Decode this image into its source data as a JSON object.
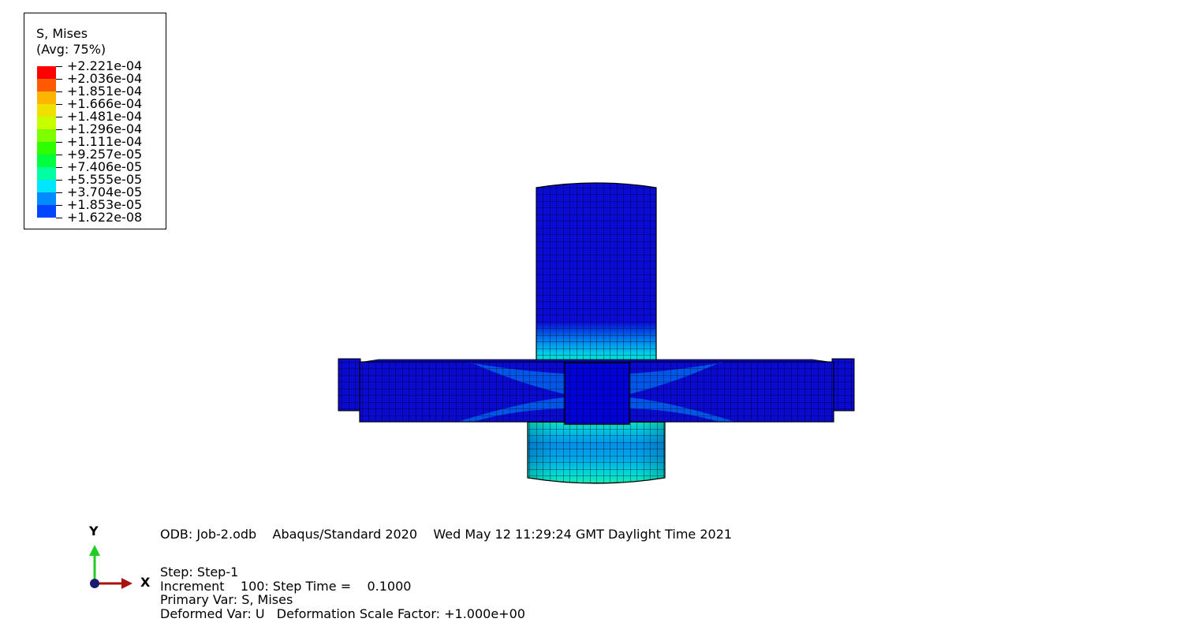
{
  "legend": {
    "title_line1": "S, Mises",
    "title_line2": "(Avg: 75%)",
    "values": [
      "+2.221e-04",
      "+2.036e-04",
      "+1.851e-04",
      "+1.666e-04",
      "+1.481e-04",
      "+1.296e-04",
      "+1.111e-04",
      "+9.257e-05",
      "+7.406e-05",
      "+5.555e-05",
      "+3.704e-05",
      "+1.853e-05",
      "+1.622e-08"
    ],
    "colors": [
      "#ff0000",
      "#ff5a00",
      "#ffb400",
      "#f0e000",
      "#c8ff00",
      "#7dff00",
      "#2dff00",
      "#00ff3c",
      "#00ffa0",
      "#00e6ff",
      "#008cff",
      "#0046ff",
      "#0000f0"
    ]
  },
  "info": {
    "odb_line": "ODB: Job-2.odb    Abaqus/Standard 2020    Wed May 12 11:29:24 GMT Daylight Time 2021",
    "step_line": "Step: Step-1",
    "increment_line": "Increment    100: Step Time =    0.1000",
    "primary_var_line": "Primary Var: S, Mises",
    "deformed_var_line": "Deformed Var: U   Deformation Scale Factor: +1.000e+00"
  },
  "triad": {
    "y_label": "Y",
    "x_label": "X",
    "y_color": "#22cc22",
    "x_color": "#aa1111",
    "origin_color": "#1a1a6e"
  }
}
